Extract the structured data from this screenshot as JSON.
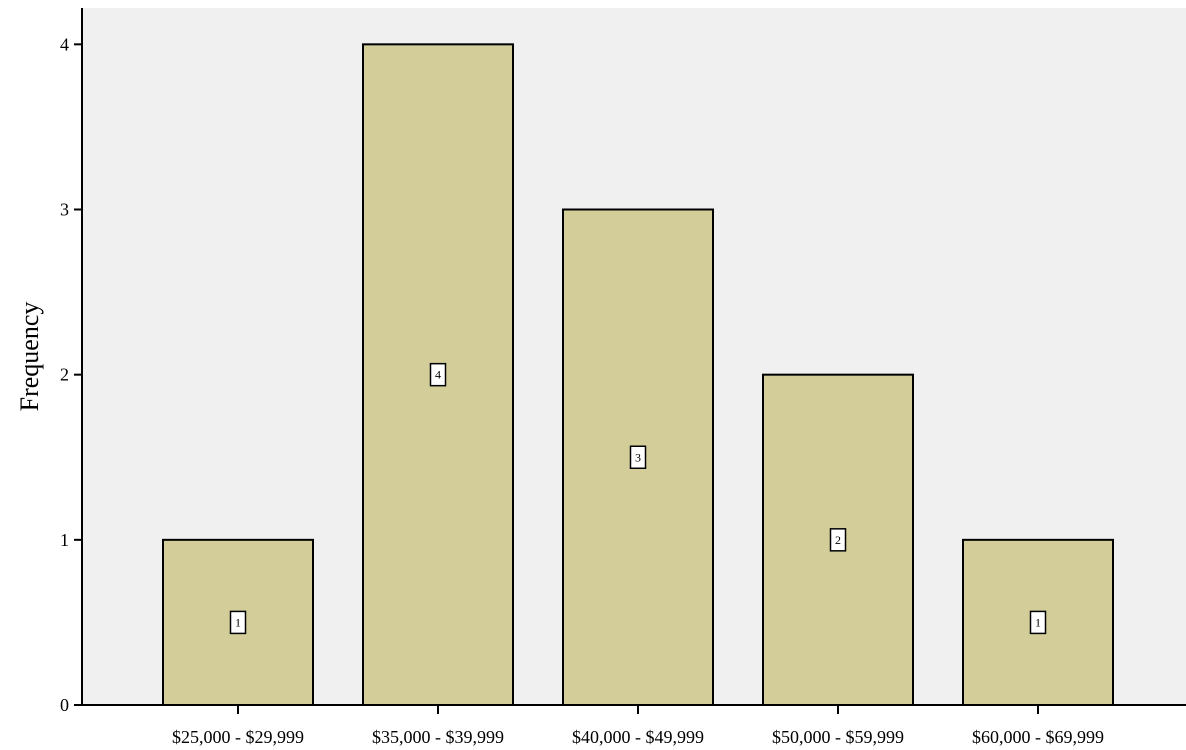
{
  "chart_data": {
    "type": "bar",
    "title": "",
    "xlabel": "",
    "ylabel": "Frequency",
    "categories": [
      "$25,000 - $29,999",
      "$35,000 - $39,999",
      "$40,000 - $49,999",
      "$50,000 - $59,999",
      "$60,000 - $69,999"
    ],
    "values": [
      1,
      4,
      3,
      2,
      1
    ],
    "data_labels": [
      "1",
      "4",
      "3",
      "2",
      "1"
    ],
    "y_ticks": [
      0,
      1,
      2,
      3,
      4
    ],
    "ylim": [
      0,
      4.22
    ],
    "grid": false,
    "legend": "none",
    "colors": {
      "plot_background": "#f0f0f0",
      "bar_fill": "#d3ce99",
      "bar_stroke": "#000000",
      "label_box_fill": "#ffffff"
    }
  }
}
